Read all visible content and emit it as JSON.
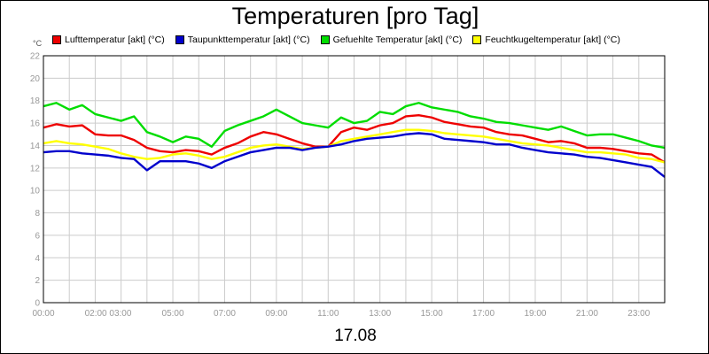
{
  "chart_data": {
    "type": "line",
    "title": "Temperaturen [pro Tag]",
    "date_label": "17.08",
    "yunit": "°C",
    "ylim": [
      0,
      22
    ],
    "yticks": [
      0,
      2,
      4,
      6,
      8,
      10,
      12,
      14,
      16,
      18,
      20,
      22
    ],
    "xlim": [
      0,
      24
    ],
    "x_hours": [
      0,
      0.5,
      1,
      1.5,
      2,
      2.5,
      3,
      3.5,
      4,
      4.5,
      5,
      5.5,
      6,
      6.5,
      7,
      7.5,
      8,
      8.5,
      9,
      9.5,
      10,
      10.5,
      11,
      11.5,
      12,
      12.5,
      13,
      13.5,
      14,
      14.5,
      15,
      15.5,
      16,
      16.5,
      17,
      17.5,
      18,
      18.5,
      19,
      19.5,
      20,
      20.5,
      21,
      21.5,
      22,
      22.5,
      23,
      23.5,
      24
    ],
    "xticks": [
      {
        "h": 0,
        "label": "00:00"
      },
      {
        "h": 2.5,
        "label": "02:00 03:00"
      },
      {
        "h": 5,
        "label": "05:00"
      },
      {
        "h": 7,
        "label": "07:00"
      },
      {
        "h": 9,
        "label": "09:00"
      },
      {
        "h": 11,
        "label": "11:00"
      },
      {
        "h": 13,
        "label": "13:00"
      },
      {
        "h": 15,
        "label": "15:00"
      },
      {
        "h": 17,
        "label": "17:00"
      },
      {
        "h": 19,
        "label": "19:00"
      },
      {
        "h": 21,
        "label": "21:00"
      },
      {
        "h": 23,
        "label": "23:00"
      }
    ],
    "grid": true,
    "legend_position": "top",
    "series": [
      {
        "name": "Gefuehlte Temperatur [akt] (°C)",
        "color": "#00dd00",
        "values": [
          17.5,
          17.8,
          17.2,
          17.6,
          16.8,
          16.5,
          16.2,
          16.6,
          15.2,
          14.8,
          14.3,
          14.8,
          14.6,
          13.9,
          15.3,
          15.8,
          16.2,
          16.6,
          17.2,
          16.6,
          16.0,
          15.8,
          15.6,
          16.5,
          16.0,
          16.2,
          17.0,
          16.8,
          17.5,
          17.8,
          17.4,
          17.2,
          17.0,
          16.6,
          16.4,
          16.1,
          16.0,
          15.8,
          15.6,
          15.4,
          15.7,
          15.3,
          14.9,
          15.0,
          15.0,
          14.7,
          14.4,
          14.0,
          13.8
        ]
      },
      {
        "name": "Lufttemperatur [akt] (°C)",
        "color": "#ee0000",
        "values": [
          15.6,
          15.9,
          15.7,
          15.8,
          15.0,
          14.9,
          14.9,
          14.5,
          13.8,
          13.5,
          13.4,
          13.6,
          13.5,
          13.2,
          13.8,
          14.2,
          14.8,
          15.2,
          15.0,
          14.6,
          14.2,
          13.9,
          13.9,
          15.2,
          15.6,
          15.4,
          15.8,
          16.0,
          16.6,
          16.7,
          16.5,
          16.1,
          15.9,
          15.7,
          15.6,
          15.2,
          15.0,
          14.9,
          14.6,
          14.3,
          14.4,
          14.2,
          13.8,
          13.8,
          13.7,
          13.5,
          13.3,
          13.2,
          12.5
        ]
      },
      {
        "name": "Feuchtkugeltemperatur [akt] (°C)",
        "color": "#ffff00",
        "values": [
          14.2,
          14.4,
          14.2,
          14.1,
          13.9,
          13.7,
          13.3,
          13.0,
          12.8,
          12.9,
          13.2,
          13.3,
          13.1,
          12.8,
          13.0,
          13.4,
          13.8,
          14.0,
          14.1,
          13.9,
          13.7,
          13.8,
          13.9,
          14.4,
          14.6,
          14.8,
          15.0,
          15.2,
          15.4,
          15.4,
          15.3,
          15.1,
          15.0,
          14.9,
          14.8,
          14.6,
          14.4,
          14.2,
          14.1,
          14.0,
          13.8,
          13.6,
          13.4,
          13.4,
          13.3,
          13.2,
          12.9,
          12.8,
          12.5
        ]
      },
      {
        "name": "Taupunkttemperatur [akt] (°C)",
        "color": "#0000cc",
        "values": [
          13.4,
          13.5,
          13.5,
          13.3,
          13.2,
          13.1,
          12.9,
          12.8,
          11.8,
          12.6,
          12.6,
          12.6,
          12.4,
          12.0,
          12.6,
          13.0,
          13.4,
          13.6,
          13.8,
          13.8,
          13.6,
          13.8,
          13.9,
          14.1,
          14.4,
          14.6,
          14.7,
          14.8,
          15.0,
          15.1,
          15.0,
          14.6,
          14.5,
          14.4,
          14.3,
          14.1,
          14.1,
          13.8,
          13.6,
          13.4,
          13.3,
          13.2,
          13.0,
          12.9,
          12.7,
          12.5,
          12.3,
          12.1,
          11.2
        ]
      }
    ],
    "legend_order": [
      "Lufttemperatur [akt] (°C)",
      "Taupunkttemperatur [akt] (°C)",
      "Gefuehlte Temperatur [akt] (°C)",
      "Feuchtkugeltemperatur [akt] (°C)"
    ]
  }
}
